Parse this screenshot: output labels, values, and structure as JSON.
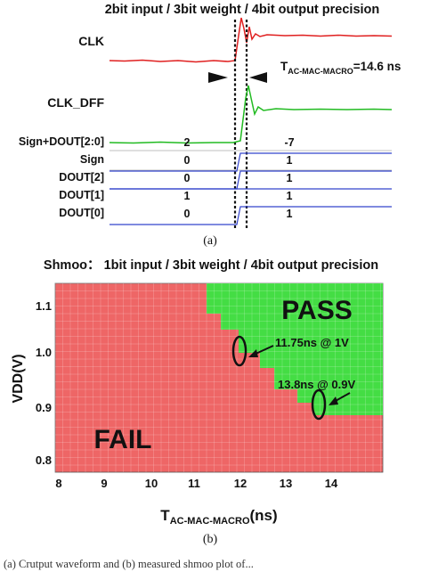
{
  "panel_a": {
    "title": "2bit input / 3bit weight / 4bit output precision",
    "clk_label": "CLK",
    "clk_dff_label": "CLK_DFF",
    "timing_prefix": "T",
    "timing_sub": "AC-MAC-MACRO",
    "timing_value": "=14.6 ns",
    "caption": "(a)",
    "signals": [
      {
        "label": "Sign+DOUT[2:0]",
        "before": "2",
        "after": "-7"
      },
      {
        "label": "Sign",
        "before": "0",
        "after": "1"
      },
      {
        "label": "DOUT[2]",
        "before": "0",
        "after": "1"
      },
      {
        "label": "DOUT[1]",
        "before": "1",
        "after": "1"
      },
      {
        "label": "DOUT[0]",
        "before": "0",
        "after": "1"
      }
    ]
  },
  "panel_b": {
    "title": "Shmoo： 1bit input / 3bit weight / 4bit output precision",
    "ylabel": "VDD(V)",
    "xlabel_prefix": "T",
    "xlabel_sub": "AC-MAC-MACRO",
    "xlabel_suffix": "(ns)",
    "yticks": [
      "1.1",
      "1.0",
      "0.9",
      "0.8"
    ],
    "xticks": [
      "8",
      "9",
      "10",
      "11",
      "12",
      "13",
      "14"
    ],
    "pass_label": "PASS",
    "fail_label": "FAIL",
    "annotation_1": "11.75ns @ 1V",
    "annotation_2": "13.8ns @ 0.9V",
    "caption": "(b)",
    "pass_color": "#44dd44",
    "fail_color": "#ee6666"
  },
  "bottom_caption": "(a) Crutput waveform and (b) measured shmoo plot of..."
}
